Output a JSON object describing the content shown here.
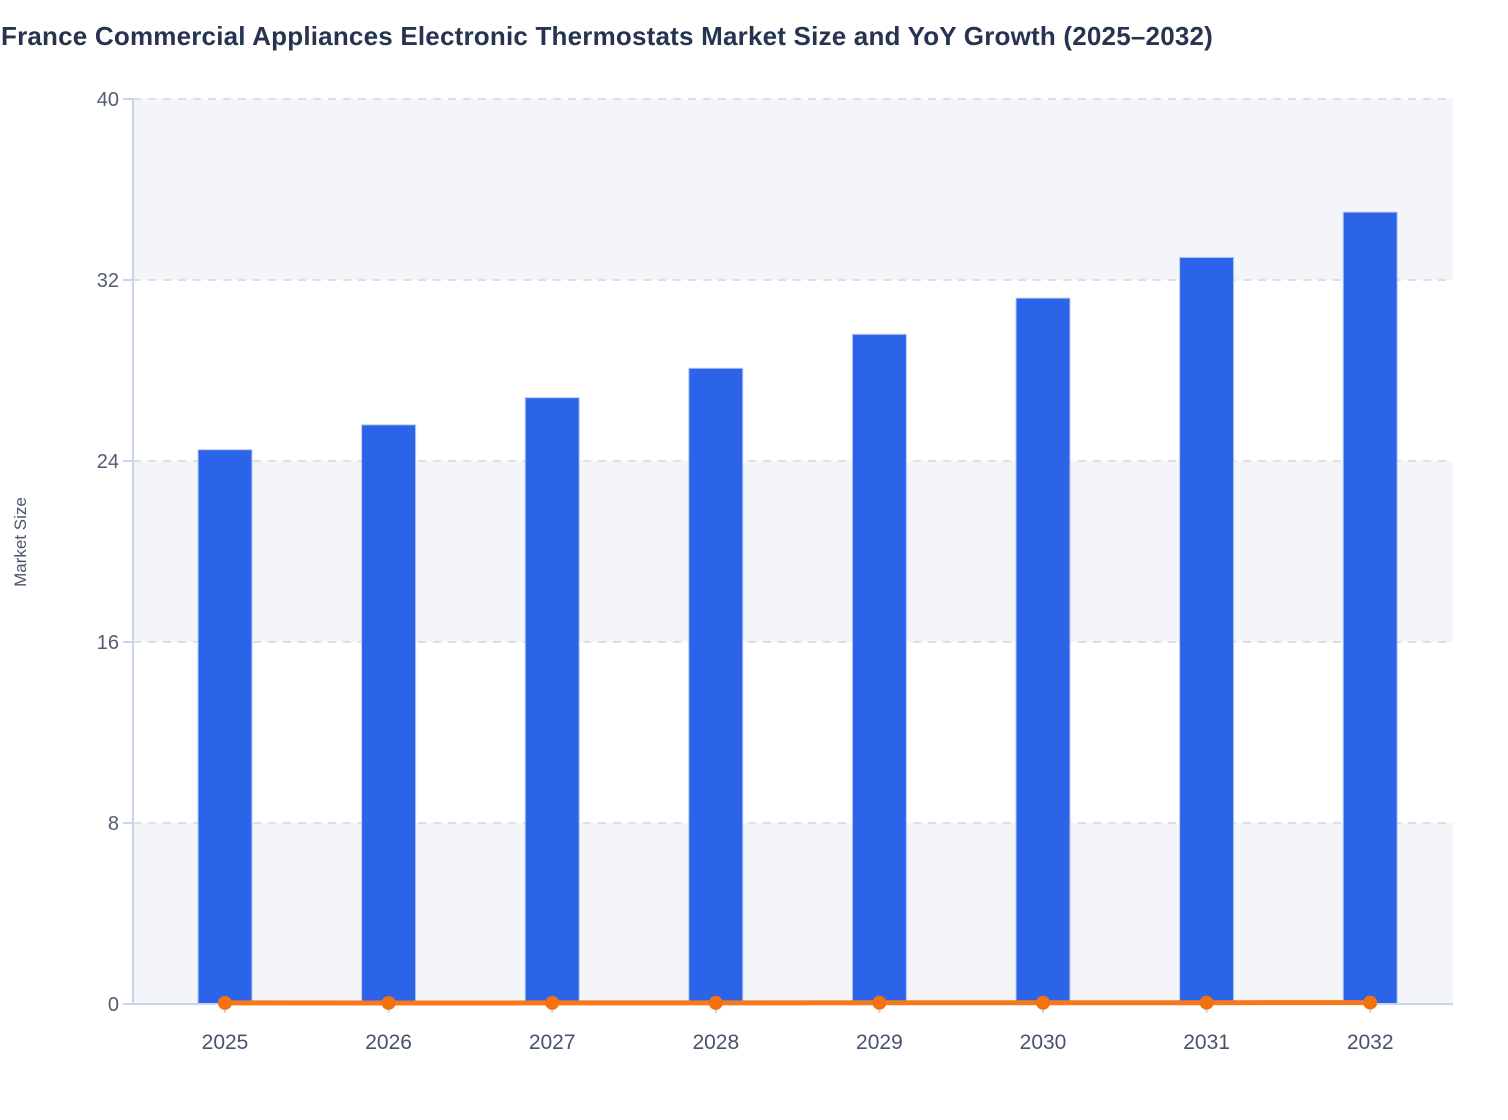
{
  "page": {
    "background": "#ffffff"
  },
  "chart_data": {
    "type": "bar",
    "title": "France Commercial Appliances Electronic Thermostats Market Size and YoY Growth (2025–2032)",
    "xlabel": "",
    "ylabel": "Market Size",
    "categories": [
      "2025",
      "2026",
      "2027",
      "2028",
      "2029",
      "2030",
      "2031",
      "2032"
    ],
    "series": [
      {
        "name": "Market Size",
        "type": "bar",
        "color": "#2b64e9",
        "values": [
          24.5,
          25.6,
          26.8,
          28.1,
          29.6,
          31.2,
          33.0,
          35.0
        ]
      },
      {
        "name": "YoY Growth",
        "type": "line",
        "color": "#f8791b",
        "values": [
          0.05,
          0.045,
          0.047,
          0.049,
          0.053,
          0.055,
          0.058,
          0.062
        ]
      }
    ],
    "ylim": [
      0,
      40
    ],
    "yticks": [
      0,
      8,
      16,
      24,
      32,
      40
    ],
    "grid": "horizontal-dashed",
    "legend_position": "none",
    "plot_bands": "alternating light bands between gridlines (0-8, 16-24, 32-40)"
  },
  "colors": {
    "bar_fill": "#2b64e9",
    "bar_stroke": "#bccbf6",
    "line_orange": "#f8791b",
    "marker_fill": "#f3710e",
    "band_fill": "#f4f5f9",
    "gridline": "#dcdfe8",
    "axis_line": "#c9d3ee",
    "y_tick_label": "#515c72",
    "x_tick_label": "#47526b",
    "title_color": "#263450",
    "y_axis_title_color": "#4b5568"
  }
}
